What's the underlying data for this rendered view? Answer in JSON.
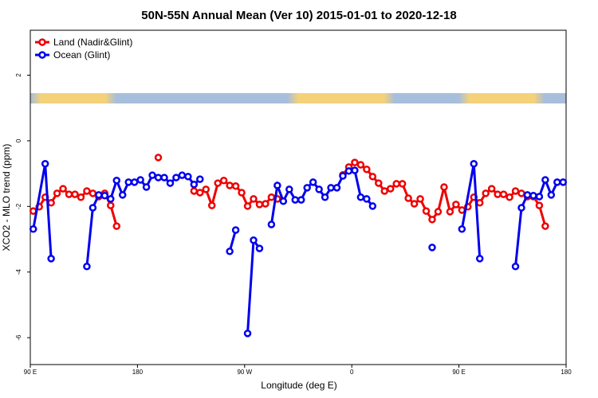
{
  "chart_data": {
    "type": "line",
    "title": "50N-55N Annual Mean (Ver 10)   2015-01-01 to 2020-12-18",
    "x_label": "Longitude (deg E)",
    "y_label": "XCO2 - MLO trend (ppm)",
    "xlim": [
      90,
      540
    ],
    "ylim": [
      -6.82,
      3.37
    ],
    "xticks": [
      {
        "value": 90,
        "label": "90 E"
      },
      180,
      {
        "value": 270,
        "label": "90 W"
      },
      {
        "value": 360,
        "label": "0"
      },
      {
        "value": 450,
        "label": "90 E"
      },
      {
        "value": 540,
        "label": "180"
      }
    ],
    "yticks": [
      2,
      0,
      -2,
      -4,
      -6
    ],
    "legend": "top-left",
    "series": [
      {
        "name": "Land (Nadir&Glint)",
        "color": "#ee0000",
        "x": [
          92.5,
          97.5,
          102.5,
          107.5,
          112.5,
          117.5,
          122.5,
          127.5,
          132.5,
          137.5,
          142.5,
          147.5,
          152.5,
          157.5,
          162.5,
          167.5,
          197.5,
          202.5,
          227.5,
          232.5,
          237.5,
          242.5,
          247.5,
          252.5,
          257.5,
          262.5,
          267.5,
          272.5,
          277.5,
          282.5,
          287.5,
          292.5,
          297.5,
          302.5,
          352.5,
          357.5,
          362.5,
          367.5,
          372.5,
          377.5,
          382.5,
          387.5,
          392.5,
          397.5,
          402.5,
          407.5,
          412.5,
          417.5,
          422.5,
          427.5,
          432.5,
          437.5,
          442.5,
          447.5,
          452.5,
          457.5,
          462.5,
          467.5,
          472.5,
          477.5,
          482.5,
          487.5,
          492.5,
          497.5,
          502.5,
          507.5,
          512.5,
          517.5,
          522.5
        ],
        "values": [
          -2.14,
          -2.01,
          -1.72,
          -1.89,
          -1.6,
          -1.46,
          -1.63,
          -1.63,
          -1.72,
          -1.53,
          -1.6,
          -1.7,
          -1.6,
          -1.97,
          -2.6,
          null,
          -0.51,
          null,
          -1.53,
          -1.58,
          -1.48,
          -1.97,
          -1.29,
          -1.21,
          -1.36,
          -1.38,
          -1.58,
          -1.99,
          -1.77,
          -1.94,
          -1.92,
          -1.72,
          -1.77,
          null,
          -1.04,
          -0.8,
          -0.66,
          -0.73,
          -0.87,
          -1.09,
          -1.29,
          -1.53,
          -1.46,
          -1.31,
          -1.31,
          -1.75,
          -1.92,
          -1.77,
          -2.14,
          -2.4,
          -2.16,
          -1.41,
          -2.16,
          -1.94,
          -2.11,
          -2.01,
          -1.72,
          -1.89,
          -1.6,
          -1.46,
          -1.63,
          -1.63,
          -1.72,
          -1.53,
          -1.6,
          -1.7,
          -1.7,
          -1.97,
          -2.6
        ]
      },
      {
        "name": "Ocean (Glint)",
        "color": "#0000ee",
        "x": [
          92.5,
          102.5,
          107.5,
          112.5,
          137.5,
          142.5,
          147.5,
          152.5,
          157.5,
          162.5,
          167.5,
          172.5,
          177.5,
          182.5,
          187.5,
          192.5,
          197.5,
          202.5,
          207.5,
          212.5,
          217.5,
          222.5,
          227.5,
          232.5,
          237.5,
          257.5,
          262.5,
          267.5,
          272.5,
          277.5,
          282.5,
          287.5,
          292.5,
          297.5,
          302.5,
          307.5,
          312.5,
          317.5,
          322.5,
          327.5,
          332.5,
          337.5,
          342.5,
          347.5,
          352.5,
          357.5,
          362.5,
          367.5,
          372.5,
          377.5,
          382.5,
          427.5,
          432.5,
          452.5,
          462.5,
          467.5,
          472.5,
          497.5,
          502.5,
          507.5,
          512.5,
          517.5,
          522.5,
          527.5,
          532.5,
          537.5
        ],
        "values": [
          -2.69,
          -0.7,
          -3.59,
          null,
          -3.83,
          -2.04,
          -1.65,
          -1.67,
          -1.77,
          -1.21,
          -1.65,
          -1.26,
          -1.26,
          -1.19,
          -1.41,
          -1.05,
          -1.12,
          -1.12,
          -1.29,
          -1.12,
          -1.05,
          -1.09,
          -1.33,
          -1.17,
          null,
          -3.37,
          -2.72,
          null,
          -5.87,
          -3.03,
          -3.28,
          null,
          -2.55,
          -1.36,
          -1.84,
          -1.48,
          -1.8,
          -1.8,
          -1.43,
          -1.26,
          -1.48,
          -1.72,
          -1.43,
          -1.43,
          -1.07,
          -0.92,
          -0.9,
          -1.72,
          -1.77,
          -1.99,
          null,
          -3.25,
          null,
          -2.69,
          -0.7,
          -3.59,
          null,
          -3.83,
          -2.04,
          -1.65,
          -1.67,
          -1.7,
          -1.19,
          -1.65,
          -1.26,
          -1.26
        ]
      }
    ]
  }
}
